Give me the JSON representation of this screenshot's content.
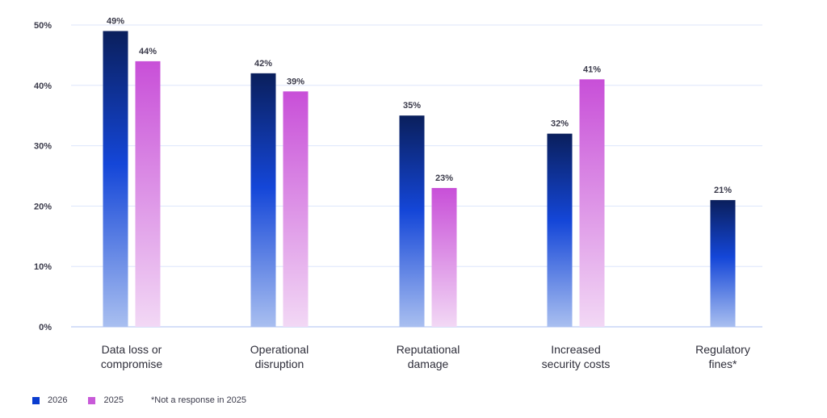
{
  "chart_data": {
    "type": "bar",
    "categories": [
      [
        "Data loss or",
        "compromise"
      ],
      [
        "Operational",
        "disruption"
      ],
      [
        "Reputational",
        "damage"
      ],
      [
        "Increased",
        "security costs"
      ],
      [
        "Regulatory",
        "fines*"
      ]
    ],
    "series": [
      {
        "name": "2026",
        "values": [
          49,
          42,
          35,
          32,
          21
        ],
        "labels": [
          "49%",
          "42%",
          "35%",
          "32%",
          "21%"
        ]
      },
      {
        "name": "2025",
        "values": [
          44,
          39,
          23,
          41,
          null
        ],
        "labels": [
          "44%",
          "39%",
          "23%",
          "41%",
          ""
        ]
      }
    ],
    "y_ticks": [
      "0%",
      "10%",
      "20%",
      "30%",
      "40%",
      "50%"
    ],
    "ylim": [
      0,
      50
    ],
    "grid": true,
    "legend_position": "bottom-left",
    "colors": {
      "2026_top": "#0a1f5c",
      "2026_mid": "#1446d8",
      "2026_bottom": "#a9bff0",
      "2025_top": "#c84fd8",
      "2025_bottom": "#f2d8f5",
      "grid": "#dde6fb"
    }
  },
  "legend": {
    "items": [
      {
        "label": "2026",
        "color": "#0a3ccf"
      },
      {
        "label": "2025",
        "color": "#c85ad8"
      }
    ],
    "note": "*Not a response in 2025"
  }
}
